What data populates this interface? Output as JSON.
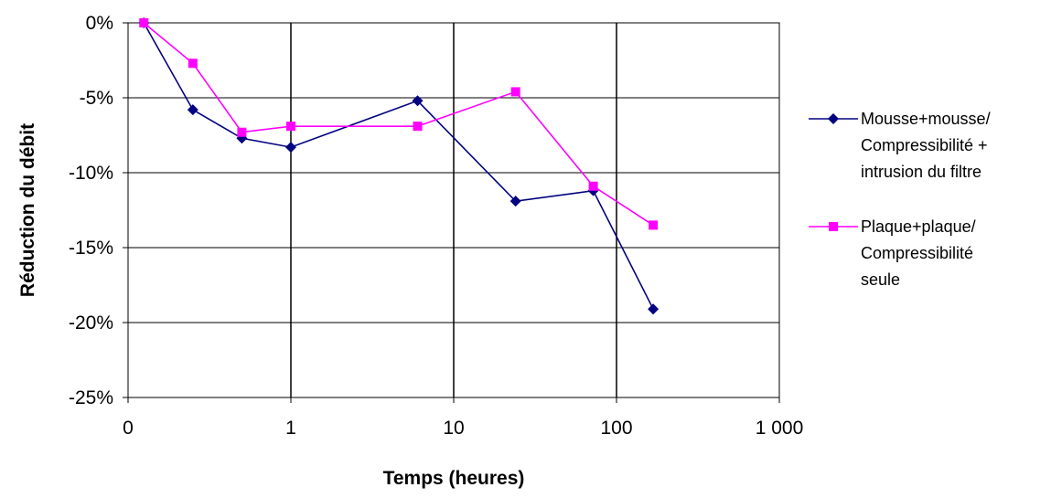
{
  "chart_data": {
    "type": "line",
    "title": "",
    "xlabel": "Temps (heures)",
    "ylabel": "Réduction du débit",
    "x_scale": "log",
    "xlim": [
      0.1,
      1000
    ],
    "ylim": [
      -25,
      0
    ],
    "x_ticks": [
      {
        "value": 0.1,
        "label": "0"
      },
      {
        "value": 1,
        "label": "1"
      },
      {
        "value": 10,
        "label": "10"
      },
      {
        "value": 100,
        "label": "100"
      },
      {
        "value": 1000,
        "label": "1 000"
      }
    ],
    "y_ticks": [
      {
        "value": 0,
        "label": "0%"
      },
      {
        "value": -5,
        "label": "-5%"
      },
      {
        "value": -10,
        "label": "-10%"
      },
      {
        "value": -15,
        "label": "-15%"
      },
      {
        "value": -20,
        "label": "-20%"
      },
      {
        "value": -25,
        "label": "-25%"
      }
    ],
    "grid": {
      "horizontal": true,
      "vertical": true
    },
    "legend_position": "right",
    "series": [
      {
        "name_lines": [
          "Mousse+mousse/",
          "Compressibilité +",
          "intrusion du filtre"
        ],
        "color": "#000080",
        "marker": "diamond",
        "x": [
          0.125,
          0.25,
          0.5,
          1,
          6,
          24,
          72,
          168
        ],
        "y": [
          0,
          -5.8,
          -7.7,
          -8.3,
          -5.2,
          -11.9,
          -11.2,
          -19.1
        ]
      },
      {
        "name_lines": [
          "Plaque+plaque/",
          "Compressibilité",
          "seule"
        ],
        "color": "#ff00ff",
        "marker": "square",
        "x": [
          0.125,
          0.25,
          0.5,
          1,
          6,
          24,
          72,
          168
        ],
        "y": [
          0,
          -2.7,
          -7.3,
          -6.9,
          -6.9,
          -4.6,
          -10.9,
          -13.5
        ]
      }
    ]
  }
}
